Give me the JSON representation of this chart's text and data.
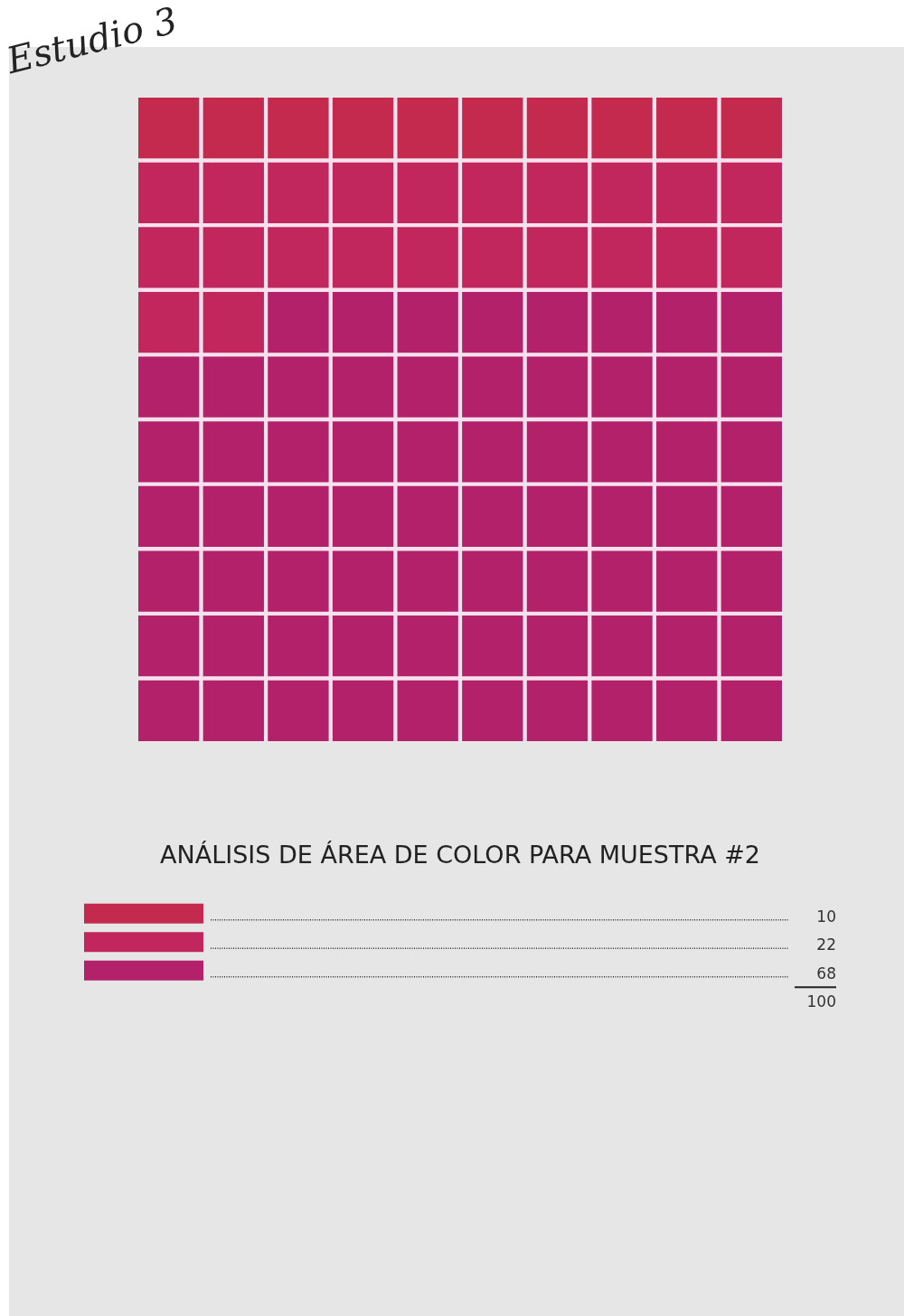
{
  "chart_data": {
    "type": "other",
    "title": "ANÁLISIS DE ÁREA DE COLOR PARA MUESTRA #2",
    "annotations": [
      "Estudio 3"
    ],
    "categories": [
      null,
      null,
      null
    ],
    "values": [
      10,
      22,
      68
    ],
    "colors": [
      "#c42a4e",
      "#c1265c",
      "#b22169"
    ],
    "totals": [
      "100"
    ],
    "data_labels": true
  }
}
